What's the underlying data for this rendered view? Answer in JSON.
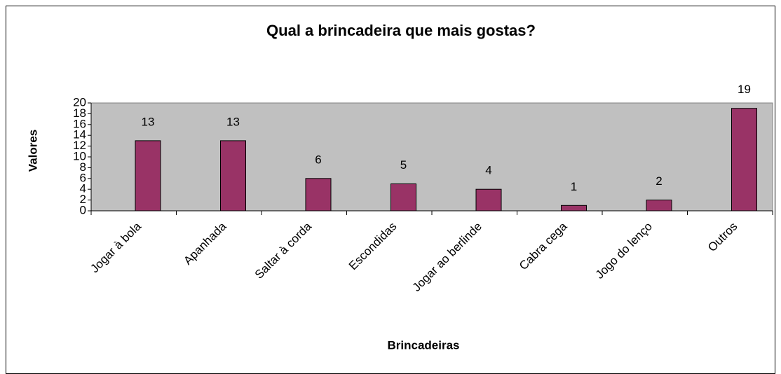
{
  "chart_data": {
    "type": "bar",
    "title": "Qual a brincadeira que mais gostas?",
    "x_label": "Brincadeiras",
    "y_label": "Valores",
    "categories": [
      "Jogar à bola",
      "Apanhada",
      "Saltar à corda",
      "Escondidas",
      "Jogar ao berlinde",
      "Cabra cega",
      "Jogo do lenço",
      "Outros"
    ],
    "values": [
      13,
      13,
      6,
      5,
      4,
      1,
      2,
      19
    ],
    "color": "#993366",
    "plot_background": "#c0c0c0",
    "ylim": [
      0,
      20
    ],
    "yticks": [
      0,
      2,
      4,
      6,
      8,
      10,
      12,
      14,
      16,
      18,
      20
    ],
    "grid": false
  }
}
